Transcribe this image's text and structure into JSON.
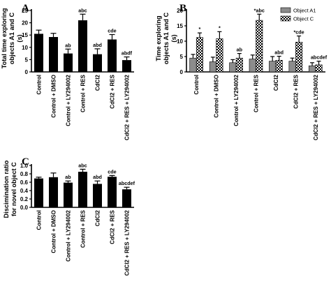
{
  "categories": [
    "Control",
    "Control + DMSO",
    "Control + LY294002",
    "Control + RES",
    "CdCl2",
    "CdCl2 + RES",
    "CdCl2 + RES + LY294002"
  ],
  "colors": {
    "bar": "#000000",
    "object_a1": "#8c8c8c",
    "object_c": "checkered"
  },
  "chart_data": [
    {
      "panel": "A",
      "type": "bar",
      "ylabel": "Total time exploring objects A1 and C (s)",
      "ylim": [
        0,
        25
      ],
      "yticks": [
        0,
        5,
        10,
        15,
        20,
        25
      ],
      "categories": [
        "Control",
        "Control + DMSO",
        "Control + LY294002",
        "Control + RES",
        "CdCl2",
        "CdCl2 + RES",
        "CdCl2 + RES + LY294002"
      ],
      "series": [
        {
          "values": [
            15.5,
            14.2,
            7.5,
            21.0,
            7.2,
            13.2,
            4.8
          ],
          "errors": [
            1.5,
            1.5,
            1.8,
            2.5,
            2.2,
            2.0,
            1.3
          ],
          "annotations": [
            "",
            "",
            "ab",
            "abc",
            "abd",
            "cde",
            "abdf"
          ]
        }
      ],
      "grid": false
    },
    {
      "panel": "B",
      "type": "bar",
      "ylabel": "Time exploring objects A1 and C (s)",
      "ylim": [
        0,
        20
      ],
      "yticks": [
        0,
        5,
        10,
        15,
        20
      ],
      "categories": [
        "Control",
        "Control + DMSO",
        "Control + LY294002",
        "Control + RES",
        "CdCl2",
        "CdCl2 + RES",
        "CdCl2 + RES + LY294002"
      ],
      "legend": "top-right",
      "series": [
        {
          "name": "Object A1",
          "values": [
            4.5,
            3.3,
            3.0,
            4.2,
            3.5,
            3.5,
            2.0
          ],
          "errors": [
            1.2,
            1.5,
            1.0,
            1.3,
            1.5,
            1.0,
            1.0
          ]
        },
        {
          "name": "Object C",
          "values": [
            11.2,
            10.8,
            4.5,
            16.8,
            3.8,
            9.7,
            2.3
          ],
          "errors": [
            1.5,
            2.3,
            1.5,
            2.0,
            1.3,
            2.0,
            1.2
          ]
        }
      ],
      "annotations": [
        "*",
        "*",
        "ab",
        "*abc",
        "abd",
        "*cde",
        "abcdef"
      ],
      "grid": false
    },
    {
      "panel": "C",
      "type": "bar",
      "ylabel": "Discimination ratio for novel object C",
      "ylim": [
        0,
        1.0
      ],
      "yticks": [
        0.0,
        0.2,
        0.4,
        0.6,
        0.8,
        1.0
      ],
      "categories": [
        "Control",
        "Control + DMSO",
        "Control + LY294002",
        "Control + RES",
        "CdCl2",
        "CdCl2 + RES",
        "CdCl2 + RES + LY294002"
      ],
      "series": [
        {
          "values": [
            0.69,
            0.72,
            0.59,
            0.85,
            0.56,
            0.73,
            0.43
          ],
          "errors": [
            0.03,
            0.1,
            0.04,
            0.06,
            0.07,
            0.03,
            0.05
          ],
          "annotations": [
            "",
            "",
            "ab",
            "abc",
            "abd",
            "cde",
            "abcdef"
          ]
        }
      ],
      "grid": false
    }
  ]
}
